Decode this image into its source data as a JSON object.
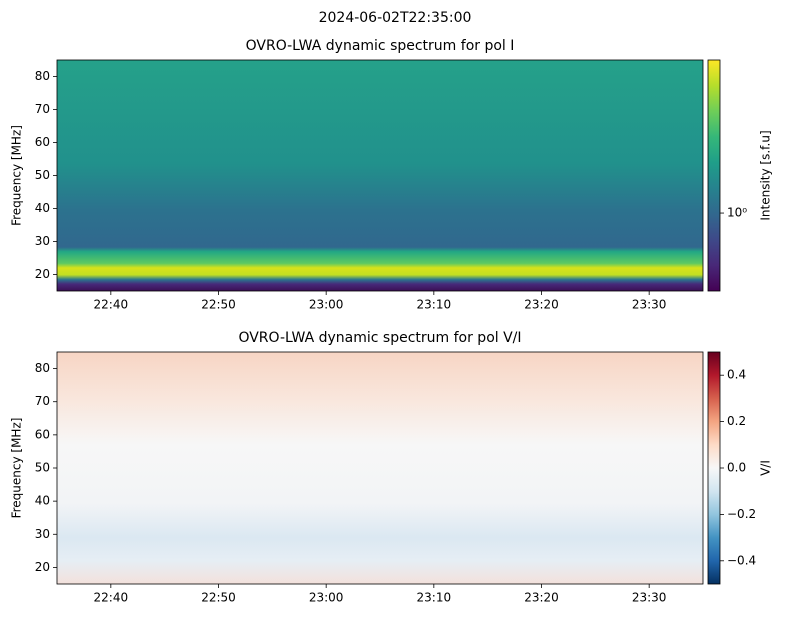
{
  "title": "2024-06-02T22:35:00",
  "chart_data": [
    {
      "type": "heatmap",
      "title": "OVRO-LWA dynamic spectrum for pol I",
      "ylabel": "Frequency [MHz]",
      "xlim": [
        "22:35",
        "23:35"
      ],
      "xticks": [
        "22:40",
        "22:50",
        "23:00",
        "23:10",
        "23:20",
        "23:30"
      ],
      "ylim": [
        15,
        85
      ],
      "yticks": [
        20,
        30,
        40,
        50,
        60,
        70,
        80
      ],
      "colormap": "viridis",
      "colorbar": {
        "label": "Intensity [s.f.u]",
        "log_scale": true,
        "lim": [
          0.5,
          3.9
        ],
        "ticks": [
          {
            "value": 1,
            "label": "10⁰"
          }
        ]
      }
    },
    {
      "type": "heatmap",
      "title": "OVRO-LWA dynamic spectrum for pol V/I",
      "ylabel": "Frequency [MHz]",
      "xlim": [
        "22:35",
        "23:35"
      ],
      "xticks": [
        "22:40",
        "22:50",
        "23:00",
        "23:10",
        "23:20",
        "23:30"
      ],
      "ylim": [
        15,
        85
      ],
      "yticks": [
        20,
        30,
        40,
        50,
        60,
        70,
        80
      ],
      "colormap": "RdBu_r",
      "colorbar": {
        "label": "V/I",
        "log_scale": false,
        "lim": [
          -0.5,
          0.5
        ],
        "ticks": [
          {
            "value": -0.4,
            "label": "−0.4"
          },
          {
            "value": -0.2,
            "label": "−0.2"
          },
          {
            "value": 0,
            "label": "0.0"
          },
          {
            "value": 0.2,
            "label": "0.2"
          },
          {
            "value": 0.4,
            "label": "0.4"
          }
        ]
      }
    }
  ]
}
